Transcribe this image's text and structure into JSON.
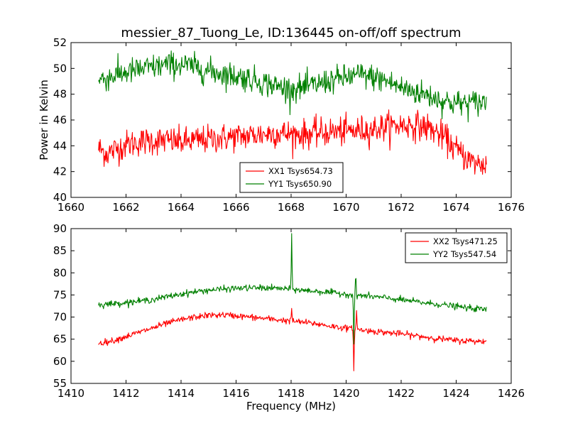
{
  "chart_data": [
    {
      "type": "line",
      "title": "messier_87_Tuong_Le, ID:136445 on-off/off spectrum",
      "xlabel": "",
      "ylabel": "Power in Kelvin",
      "xlim": [
        1660,
        1676
      ],
      "ylim": [
        40,
        52
      ],
      "xticks": [
        1660,
        1662,
        1664,
        1666,
        1668,
        1670,
        1672,
        1674,
        1676
      ],
      "yticks": [
        40,
        42,
        44,
        46,
        48,
        50,
        52
      ],
      "grid": false,
      "legend_position": "lower-center",
      "x_range": [
        1661.0,
        1675.1
      ],
      "series": [
        {
          "name": "XX1 Tsys654.73",
          "color": "#ff0000",
          "profile": [
            [
              1661.0,
              43.8
            ],
            [
              1661.3,
              43.4
            ],
            [
              1661.6,
              43.7
            ],
            [
              1662.0,
              44.1
            ],
            [
              1662.5,
              44.3
            ],
            [
              1663.0,
              44.4
            ],
            [
              1663.5,
              44.4
            ],
            [
              1664.0,
              44.3
            ],
            [
              1664.5,
              44.4
            ],
            [
              1665.0,
              44.5
            ],
            [
              1665.5,
              44.6
            ],
            [
              1666.0,
              44.7
            ],
            [
              1666.5,
              44.8
            ],
            [
              1667.0,
              44.9
            ],
            [
              1667.5,
              45.0
            ],
            [
              1668.0,
              44.9
            ],
            [
              1668.5,
              44.9
            ],
            [
              1669.0,
              45.0
            ],
            [
              1669.5,
              45.1
            ],
            [
              1670.0,
              45.1
            ],
            [
              1670.5,
              45.2
            ],
            [
              1671.0,
              45.3
            ],
            [
              1671.5,
              45.5
            ],
            [
              1672.0,
              45.6
            ],
            [
              1672.5,
              45.6
            ],
            [
              1673.0,
              45.4
            ],
            [
              1673.3,
              45.0
            ],
            [
              1673.6,
              44.6
            ],
            [
              1674.0,
              43.7
            ],
            [
              1674.3,
              43.2
            ],
            [
              1674.6,
              42.7
            ],
            [
              1675.1,
              42.5
            ]
          ],
          "noise": 0.55
        },
        {
          "name": "YY1 Tsys650.90",
          "color": "#008000",
          "profile": [
            [
              1661.0,
              49.1
            ],
            [
              1661.5,
              49.4
            ],
            [
              1662.0,
              49.7
            ],
            [
              1662.5,
              49.9
            ],
            [
              1663.0,
              50.1
            ],
            [
              1663.5,
              50.3
            ],
            [
              1664.0,
              50.3
            ],
            [
              1664.5,
              50.1
            ],
            [
              1665.0,
              49.8
            ],
            [
              1665.5,
              49.6
            ],
            [
              1666.0,
              49.4
            ],
            [
              1666.5,
              49.2
            ],
            [
              1667.0,
              48.9
            ],
            [
              1667.5,
              48.6
            ],
            [
              1668.0,
              48.4
            ],
            [
              1668.5,
              48.5
            ],
            [
              1669.0,
              48.8
            ],
            [
              1669.5,
              49.1
            ],
            [
              1670.0,
              49.3
            ],
            [
              1670.5,
              49.5
            ],
            [
              1671.0,
              49.3
            ],
            [
              1671.5,
              49.0
            ],
            [
              1672.0,
              48.5
            ],
            [
              1672.5,
              48.2
            ],
            [
              1673.0,
              47.9
            ],
            [
              1673.5,
              47.5
            ],
            [
              1674.0,
              47.3
            ],
            [
              1674.5,
              47.3
            ],
            [
              1675.1,
              47.4
            ]
          ],
          "noise": 0.5
        }
      ]
    },
    {
      "type": "line",
      "title": "",
      "xlabel": "Frequency (MHz)",
      "ylabel": "",
      "xlim": [
        1410,
        1426
      ],
      "ylim": [
        55,
        90
      ],
      "xticks": [
        1410,
        1412,
        1414,
        1416,
        1418,
        1420,
        1422,
        1424,
        1426
      ],
      "yticks": [
        55,
        60,
        65,
        70,
        75,
        80,
        85,
        90
      ],
      "grid": false,
      "legend_position": "top-right",
      "x_range": [
        1411.0,
        1425.1
      ],
      "series": [
        {
          "name": "XX2 Tsys471.25",
          "color": "#ff0000",
          "profile": [
            [
              1411.0,
              64.1
            ],
            [
              1411.5,
              64.6
            ],
            [
              1412.0,
              65.6
            ],
            [
              1412.5,
              66.6
            ],
            [
              1413.0,
              67.6
            ],
            [
              1413.5,
              68.6
            ],
            [
              1414.0,
              69.4
            ],
            [
              1414.5,
              70.0
            ],
            [
              1415.0,
              70.4
            ],
            [
              1415.5,
              70.5
            ],
            [
              1416.0,
              70.3
            ],
            [
              1416.5,
              70.0
            ],
            [
              1417.0,
              69.7
            ],
            [
              1417.5,
              69.4
            ],
            [
              1418.0,
              69.1
            ],
            [
              1418.5,
              68.8
            ],
            [
              1419.0,
              68.4
            ],
            [
              1419.5,
              67.9
            ],
            [
              1420.0,
              67.5
            ],
            [
              1420.5,
              67.1
            ],
            [
              1421.0,
              66.8
            ],
            [
              1421.5,
              66.5
            ],
            [
              1422.0,
              66.2
            ],
            [
              1422.5,
              65.8
            ],
            [
              1423.0,
              65.4
            ],
            [
              1423.5,
              65.0
            ],
            [
              1424.0,
              64.7
            ],
            [
              1424.5,
              64.6
            ],
            [
              1425.1,
              64.5
            ]
          ],
          "noise": 0.35,
          "spikes": [
            {
              "x": 1418.02,
              "y": 72.0
            },
            {
              "x": 1420.28,
              "y": 57.5
            },
            {
              "x": 1420.38,
              "y": 71.5
            }
          ]
        },
        {
          "name": "YY2 Tsys547.54",
          "color": "#008000",
          "profile": [
            [
              1411.0,
              72.8
            ],
            [
              1411.5,
              73.0
            ],
            [
              1412.0,
              73.3
            ],
            [
              1412.5,
              73.6
            ],
            [
              1413.0,
              74.0
            ],
            [
              1413.5,
              74.6
            ],
            [
              1414.0,
              75.2
            ],
            [
              1414.5,
              75.7
            ],
            [
              1415.0,
              76.1
            ],
            [
              1415.5,
              76.3
            ],
            [
              1416.0,
              76.5
            ],
            [
              1416.5,
              76.6
            ],
            [
              1417.0,
              76.6
            ],
            [
              1417.5,
              76.5
            ],
            [
              1418.0,
              76.3
            ],
            [
              1418.5,
              76.0
            ],
            [
              1419.0,
              75.8
            ],
            [
              1419.5,
              75.5
            ],
            [
              1420.0,
              75.2
            ],
            [
              1420.5,
              74.9
            ],
            [
              1421.0,
              74.6
            ],
            [
              1421.5,
              74.3
            ],
            [
              1422.0,
              73.9
            ],
            [
              1422.5,
              73.5
            ],
            [
              1423.0,
              73.1
            ],
            [
              1423.5,
              72.8
            ],
            [
              1424.0,
              72.4
            ],
            [
              1424.5,
              72.0
            ],
            [
              1425.1,
              71.7
            ]
          ],
          "noise": 0.35,
          "spikes": [
            {
              "x": 1418.02,
              "y": 89.0
            },
            {
              "x": 1420.28,
              "y": 63.5
            },
            {
              "x": 1420.35,
              "y": 80.5
            }
          ]
        }
      ]
    }
  ]
}
